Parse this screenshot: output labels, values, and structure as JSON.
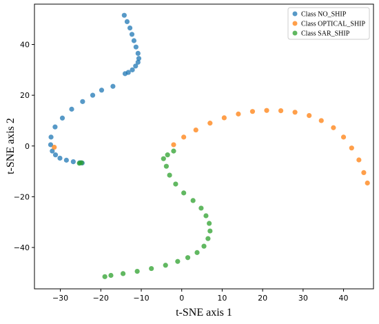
{
  "chart_data": {
    "type": "scatter",
    "title": "",
    "xlabel": "t-SNE axis 1",
    "ylabel": "t-SNE axis 2",
    "xlim": [
      -36.4,
      47.4
    ],
    "ylim": [
      -56.3,
      55.9
    ],
    "xticks": [
      -30,
      -20,
      -10,
      0,
      10,
      20,
      30,
      40
    ],
    "yticks": [
      -40,
      -20,
      0,
      20,
      40
    ],
    "grid": false,
    "legend_position": "top-right",
    "series": [
      {
        "name": "Class NO_SHIP",
        "color": "#1f77b4",
        "x": [
          -14.2,
          -13.5,
          -12.8,
          -12.3,
          -11.8,
          -11.3,
          -10.8,
          -10.6,
          -10.8,
          -11.4,
          -12.2,
          -13.2,
          -14.0,
          -17.0,
          -19.8,
          -22.0,
          -24.5,
          -27.2,
          -29.5,
          -31.3,
          -32.3,
          -32.4,
          -32.0,
          -31.2,
          -30.1,
          -28.5,
          -26.8,
          -25.2,
          -24.6
        ],
        "y": [
          51.5,
          49.0,
          46.5,
          44.0,
          41.5,
          39.0,
          36.5,
          34.5,
          33.0,
          31.5,
          30.0,
          29.0,
          28.5,
          23.5,
          22.0,
          20.0,
          17.5,
          14.5,
          11.0,
          7.5,
          3.5,
          0.5,
          -2.0,
          -3.5,
          -4.8,
          -5.6,
          -6.2,
          -6.6,
          -6.7
        ]
      },
      {
        "name": "Class OPTICAL_SHIP",
        "color": "#ff7f0e",
        "x": [
          -2.0,
          0.5,
          3.5,
          7.0,
          10.5,
          14.0,
          17.5,
          21.0,
          24.5,
          28.0,
          31.5,
          34.5,
          37.5,
          40.0,
          42.0,
          43.8,
          45.0,
          45.9,
          -31.5
        ],
        "y": [
          0.5,
          3.5,
          6.3,
          9.0,
          11.1,
          12.6,
          13.6,
          14.0,
          13.9,
          13.3,
          12.0,
          10.0,
          7.2,
          3.5,
          -0.8,
          -5.5,
          -10.5,
          -14.6,
          -0.5
        ]
      },
      {
        "name": "Class SAR_SHIP",
        "color": "#2ca02c",
        "x": [
          -2.0,
          -3.5,
          -4.5,
          -3.8,
          -3.0,
          -1.5,
          0.5,
          2.8,
          4.8,
          6.0,
          6.8,
          7.0,
          6.5,
          5.5,
          3.8,
          1.5,
          -1.0,
          -4.0,
          -7.5,
          -11.0,
          -14.5,
          -17.5,
          -19.0,
          -24.8,
          -25.3
        ],
        "y": [
          -2.0,
          -3.5,
          -5.0,
          -8.0,
          -11.5,
          -15.0,
          -18.5,
          -21.5,
          -24.5,
          -27.5,
          -30.5,
          -33.5,
          -36.5,
          -39.5,
          -42.0,
          -44.0,
          -45.5,
          -47.0,
          -48.3,
          -49.4,
          -50.3,
          -51.0,
          -51.5,
          -6.6,
          -6.8
        ]
      }
    ]
  }
}
